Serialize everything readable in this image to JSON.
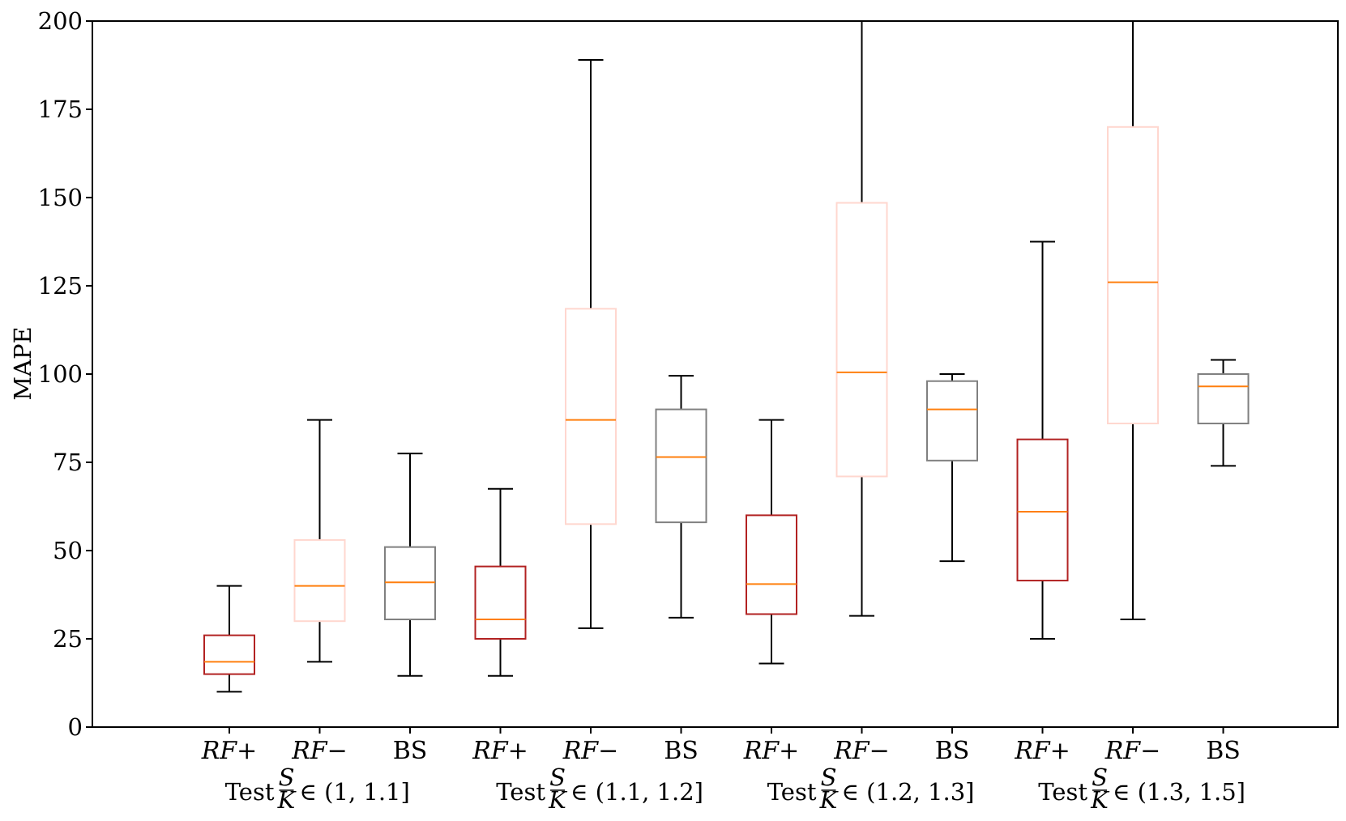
{
  "chart_data": {
    "type": "boxplot",
    "ylabel": "MAPE",
    "xlabel": "",
    "ylim": [
      0,
      200
    ],
    "yticks": [
      0,
      25,
      50,
      75,
      100,
      125,
      150,
      175,
      200
    ],
    "grid": false,
    "colors": {
      "RF+": "#b22222",
      "RF-": "#ffd7cf",
      "BS": "#808080",
      "median": "#ff7f0e",
      "whisker": "#000000"
    },
    "groups": [
      {
        "label_prefix": "Test",
        "label_num": "S",
        "label_den": "K",
        "label_suffix": "∈ (1, 1.1]",
        "boxes": [
          {
            "method": "RF+",
            "label": "RF+",
            "whislo": 10,
            "q1": 15,
            "med": 18.5,
            "q3": 26,
            "whishi": 40
          },
          {
            "method": "RF-",
            "label": "RF−",
            "whislo": 18.5,
            "q1": 30,
            "med": 40,
            "q3": 53,
            "whishi": 87
          },
          {
            "method": "BS",
            "label": "BS",
            "whislo": 14.5,
            "q1": 30.5,
            "med": 41,
            "q3": 51,
            "whishi": 77.5
          }
        ]
      },
      {
        "label_prefix": "Test",
        "label_num": "S",
        "label_den": "K",
        "label_suffix": "∈ (1.1, 1.2]",
        "boxes": [
          {
            "method": "RF+",
            "label": "RF+",
            "whislo": 14.5,
            "q1": 25,
            "med": 30.5,
            "q3": 45.5,
            "whishi": 67.5
          },
          {
            "method": "RF-",
            "label": "RF−",
            "whislo": 28,
            "q1": 57.5,
            "med": 87,
            "q3": 118.5,
            "whishi": 189
          },
          {
            "method": "BS",
            "label": "BS",
            "whislo": 31,
            "q1": 58,
            "med": 76.5,
            "q3": 90,
            "whishi": 99.5
          }
        ]
      },
      {
        "label_prefix": "Test",
        "label_num": "S",
        "label_den": "K",
        "label_suffix": "∈ (1.2, 1.3]",
        "boxes": [
          {
            "method": "RF+",
            "label": "RF+",
            "whislo": 18,
            "q1": 32,
            "med": 40.5,
            "q3": 60,
            "whishi": 87
          },
          {
            "method": "RF-",
            "label": "RF−",
            "whislo": 31.5,
            "q1": 71,
            "med": 100.5,
            "q3": 148.5,
            "whishi": 200
          },
          {
            "method": "BS",
            "label": "BS",
            "whislo": 47,
            "q1": 75.5,
            "med": 90,
            "q3": 98,
            "whishi": 100
          }
        ]
      },
      {
        "label_prefix": "Test",
        "label_num": "S",
        "label_den": "K",
        "label_suffix": "∈ (1.3, 1.5]",
        "boxes": [
          {
            "method": "RF+",
            "label": "RF+",
            "whislo": 25,
            "q1": 41.5,
            "med": 61,
            "q3": 81.5,
            "whishi": 137.5
          },
          {
            "method": "RF-",
            "label": "RF−",
            "whislo": 30.5,
            "q1": 86,
            "med": 126,
            "q3": 170,
            "whishi": 200
          },
          {
            "method": "BS",
            "label": "BS",
            "whislo": 74,
            "q1": 86,
            "med": 96.5,
            "q3": 100,
            "whishi": 104
          }
        ]
      }
    ]
  }
}
